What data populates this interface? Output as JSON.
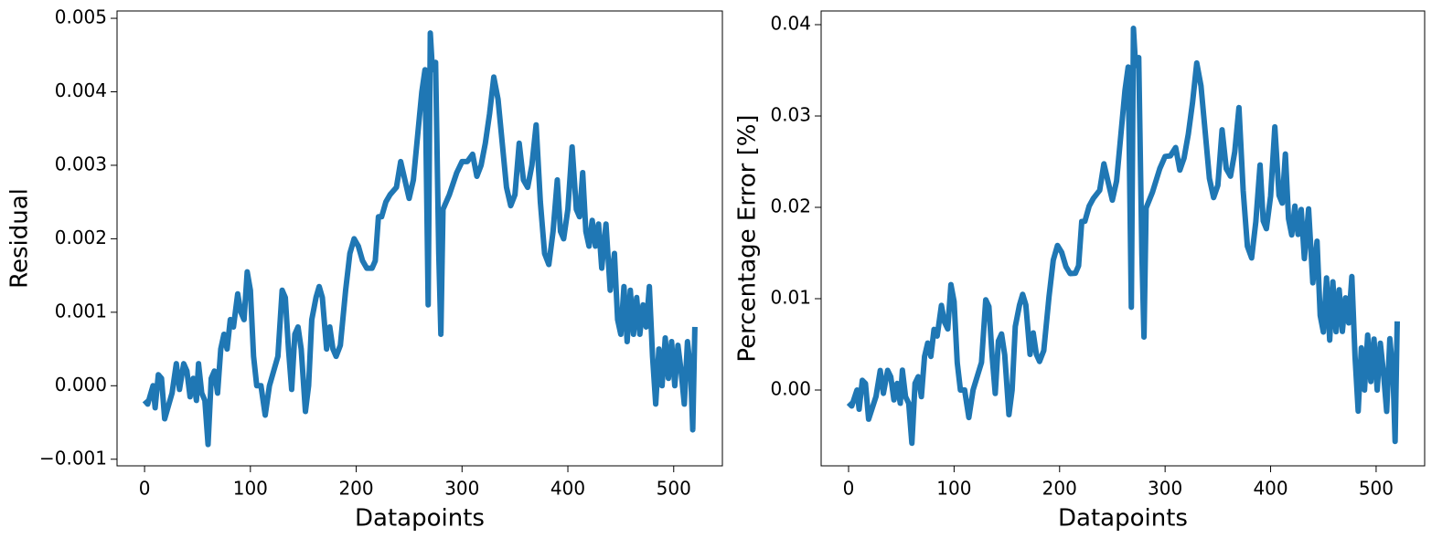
{
  "chart_data": [
    {
      "type": "line",
      "xlabel": "Datapoints",
      "ylabel": "Residual",
      "color": "#1f77b4",
      "xlim": [
        -26,
        546
      ],
      "ylim": [
        -0.00109,
        0.0051
      ],
      "xticks": [
        0,
        100,
        200,
        300,
        400,
        500
      ],
      "yticks": [
        {
          "value": -0.001,
          "label": "−0.001"
        },
        {
          "value": 0,
          "label": "0.000"
        },
        {
          "value": 0.001,
          "label": "0.001"
        },
        {
          "value": 0.002,
          "label": "0.002"
        },
        {
          "value": 0.003,
          "label": "0.003"
        },
        {
          "value": 0.004,
          "label": "0.004"
        },
        {
          "value": 0.005,
          "label": "0.005"
        }
      ],
      "x": [
        0,
        3,
        6,
        8,
        10,
        13,
        16,
        19,
        22,
        26,
        30,
        33,
        37,
        40,
        43,
        46,
        49,
        51,
        54,
        57,
        60,
        63,
        66,
        69,
        72,
        75,
        78,
        81,
        84,
        88,
        91,
        94,
        97,
        100,
        103,
        106,
        110,
        114,
        118,
        122,
        126,
        130,
        133,
        136,
        139,
        142,
        145,
        148,
        152,
        155,
        158,
        162,
        165,
        168,
        172,
        175,
        178,
        181,
        185,
        190,
        194,
        198,
        202,
        206,
        210,
        215,
        218,
        221,
        224,
        228,
        232,
        238,
        242,
        246,
        250,
        254,
        258,
        262,
        265,
        268,
        270,
        272,
        275,
        278,
        280,
        282,
        288,
        295,
        300,
        305,
        310,
        314,
        318,
        322,
        326,
        330,
        334,
        338,
        342,
        346,
        350,
        354,
        358,
        362,
        366,
        370,
        374,
        378,
        382,
        386,
        390,
        393,
        396,
        400,
        404,
        408,
        411,
        414,
        417,
        420,
        423,
        426,
        429,
        432,
        436,
        440,
        444,
        447,
        450,
        453,
        456,
        459,
        462,
        465,
        468,
        471,
        474,
        477,
        480,
        483,
        486,
        489,
        492,
        495,
        498,
        501,
        504,
        507,
        510,
        513,
        516,
        518,
        520
      ],
      "values": [
        -0.0002,
        -0.00025,
        -0.0001,
        0,
        -0.0003,
        0.00015,
        0.0001,
        -0.00045,
        -0.0003,
        -0.0001,
        0.0003,
        -5e-05,
        0.0003,
        0.0002,
        -0.00015,
        0.0001,
        -0.0002,
        0.0003,
        -0.0001,
        -0.0002,
        -0.0008,
        0.0001,
        0.0002,
        -0.0001,
        0.0005,
        0.0007,
        0.0005,
        0.0009,
        0.0008,
        0.00125,
        0.001,
        0.0009,
        0.00155,
        0.0013,
        0.0004,
        0,
        0,
        -0.0004,
        0,
        0.0002,
        0.0004,
        0.0013,
        0.0012,
        0.0005,
        -5e-05,
        0.0007,
        0.0008,
        0.0005,
        -0.00035,
        0,
        0.0009,
        0.0012,
        0.00135,
        0.0012,
        0.0005,
        0.0008,
        0.0005,
        0.0004,
        0.00055,
        0.0013,
        0.0018,
        0.002,
        0.0019,
        0.0017,
        0.0016,
        0.0016,
        0.0017,
        0.0023,
        0.0023,
        0.0025,
        0.0026,
        0.0027,
        0.00305,
        0.0028,
        0.00255,
        0.0028,
        0.0034,
        0.004,
        0.0043,
        0.0011,
        0.0048,
        0.0043,
        0.0044,
        0.0018,
        0.0007,
        0.0024,
        0.0026,
        0.0029,
        0.00305,
        0.00305,
        0.00315,
        0.00285,
        0.003,
        0.0033,
        0.0037,
        0.0042,
        0.0039,
        0.0033,
        0.0027,
        0.00245,
        0.0026,
        0.0033,
        0.0028,
        0.0027,
        0.003,
        0.00355,
        0.0025,
        0.0018,
        0.00165,
        0.0021,
        0.0028,
        0.0021,
        0.002,
        0.0024,
        0.00325,
        0.0024,
        0.0023,
        0.0029,
        0.0021,
        0.0019,
        0.00225,
        0.0019,
        0.0022,
        0.0016,
        0.0022,
        0.0013,
        0.0018,
        0.0009,
        0.0007,
        0.00135,
        0.0006,
        0.0013,
        0.0007,
        0.0012,
        0.0007,
        0.0011,
        0.0008,
        0.00135,
        0.0004,
        -0.00025,
        0.0005,
        0,
        0.00065,
        0.0001,
        0.0006,
        0,
        0.00055,
        0.0002,
        -0.00025,
        0.0006,
        0.0002,
        -0.0006,
        0.0008
      ]
    },
    {
      "type": "line",
      "xlabel": "Datapoints",
      "ylabel": "Percentage Error [%]",
      "color": "#1f77b4",
      "xlim": [
        -26,
        546
      ],
      "ylim": [
        -0.0083,
        0.0415
      ],
      "xticks": [
        0,
        100,
        200,
        300,
        400,
        500
      ],
      "yticks": [
        {
          "value": 0,
          "label": "0.00"
        },
        {
          "value": 0.01,
          "label": "0.01"
        },
        {
          "value": 0.02,
          "label": "0.02"
        },
        {
          "value": 0.03,
          "label": "0.03"
        },
        {
          "value": 0.04,
          "label": "0.04"
        }
      ],
      "x": [
        0,
        3,
        6,
        8,
        10,
        13,
        16,
        19,
        22,
        26,
        30,
        33,
        37,
        40,
        43,
        46,
        49,
        51,
        54,
        57,
        60,
        63,
        66,
        69,
        72,
        75,
        78,
        81,
        84,
        88,
        91,
        94,
        97,
        100,
        103,
        106,
        110,
        114,
        118,
        122,
        126,
        130,
        133,
        136,
        139,
        142,
        145,
        148,
        152,
        155,
        158,
        162,
        165,
        168,
        172,
        175,
        178,
        181,
        185,
        190,
        194,
        198,
        202,
        206,
        210,
        215,
        218,
        221,
        224,
        228,
        232,
        238,
        242,
        246,
        250,
        254,
        258,
        262,
        265,
        268,
        270,
        272,
        275,
        278,
        280,
        282,
        288,
        295,
        300,
        305,
        310,
        314,
        318,
        322,
        326,
        330,
        334,
        338,
        342,
        346,
        350,
        354,
        358,
        362,
        366,
        370,
        374,
        378,
        382,
        386,
        390,
        393,
        396,
        400,
        404,
        408,
        411,
        414,
        417,
        420,
        423,
        426,
        429,
        432,
        436,
        440,
        444,
        447,
        450,
        453,
        456,
        459,
        462,
        465,
        468,
        471,
        474,
        477,
        480,
        483,
        486,
        489,
        492,
        495,
        498,
        501,
        504,
        507,
        510,
        513,
        516,
        518,
        520
      ],
      "values": [
        -0.0014,
        -0.00175,
        -0.0007,
        0,
        -0.0021,
        0.00106,
        0.00071,
        -0.00319,
        -0.00213,
        -0.00071,
        0.00214,
        -0.00036,
        0.00215,
        0.00144,
        -0.00108,
        0.00072,
        -0.00145,
        0.00217,
        -0.00073,
        -0.00145,
        -0.00582,
        0.00073,
        0.00146,
        -0.00073,
        0.00367,
        0.00514,
        0.00368,
        0.00664,
        0.00591,
        0.00926,
        0.00742,
        0.00669,
        0.01154,
        0.0097,
        0.00299,
        0,
        0,
        -0.00301,
        0,
        0.00151,
        0.00303,
        0.00988,
        0.00914,
        0.00381,
        -0.00038,
        0.00536,
        0.00614,
        0.00384,
        -0.0027,
        0,
        0.00696,
        0.0093,
        0.01048,
        0.00933,
        0.0039,
        0.00625,
        0.00391,
        0.00313,
        0.00432,
        0.01024,
        0.01422,
        0.01583,
        0.01507,
        0.01351,
        0.01275,
        0.01279,
        0.01361,
        0.01845,
        0.01848,
        0.02013,
        0.02098,
        0.02187,
        0.02476,
        0.02278,
        0.02079,
        0.02288,
        0.02785,
        0.03284,
        0.03536,
        0.00906,
        0.0396,
        0.03552,
        0.0364,
        0.01491,
        0.0058,
        0.01992,
        0.02165,
        0.02425,
        0.02557,
        0.02564,
        0.02655,
        0.02408,
        0.02541,
        0.02802,
        0.03146,
        0.0358,
        0.03331,
        0.02825,
        0.02316,
        0.02107,
        0.02241,
        0.02849,
        0.02422,
        0.02341,
        0.02607,
        0.03092,
        0.02182,
        0.01574,
        0.01446,
        0.01844,
        0.02464,
        0.01851,
        0.01766,
        0.02123,
        0.02881,
        0.02131,
        0.02046,
        0.02584,
        0.01874,
        0.01698,
        0.02014,
        0.01704,
        0.01976,
        0.01439,
        0.01982,
        0.01174,
        0.01629,
        0.00816,
        0.00635,
        0.01227,
        0.00546,
        0.01185,
        0.00639,
        0.01098,
        0.00641,
        0.01009,
        0.00735,
        0.01242,
        0.00369,
        -0.00231,
        0.00462,
        0,
        0.00603,
        0.00093,
        0.00558,
        0,
        0.00513,
        0.00187,
        -0.00234,
        0.00562,
        0.00188,
        -0.00563,
        0.00752
      ]
    }
  ]
}
